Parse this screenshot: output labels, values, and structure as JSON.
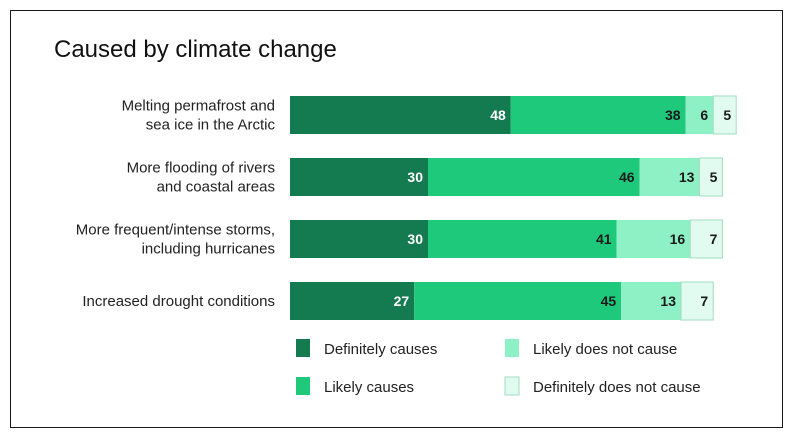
{
  "chart_data": {
    "type": "bar",
    "orientation": "horizontal",
    "stacked": true,
    "title": "Caused by climate change",
    "xlabel": "",
    "ylabel": "",
    "xlim": [
      0,
      100
    ],
    "grid": false,
    "legend_position": "bottom",
    "categories": [
      [
        "Melting permafrost and",
        "sea ice in the Arctic"
      ],
      [
        "More flooding of rivers",
        "and coastal areas"
      ],
      [
        "More frequent/intense storms,",
        "including hurricanes"
      ],
      [
        "Increased drought conditions"
      ]
    ],
    "series": [
      {
        "name": "Definitely causes",
        "color": "#147a4f",
        "label_color": "#ffffff",
        "values": [
          48,
          30,
          30,
          27
        ]
      },
      {
        "name": "Likely causes",
        "color": "#1ec97c",
        "label_color": "#1a1a1a",
        "values": [
          38,
          46,
          41,
          45
        ]
      },
      {
        "name": "Likely does not cause",
        "color": "#8ef0c5",
        "label_color": "#1a1a1a",
        "values": [
          6,
          13,
          16,
          13
        ]
      },
      {
        "name": "Definitely does not cause",
        "color": "#e2fbf0",
        "label_color": "#1a1a1a",
        "values": [
          5,
          5,
          7,
          7
        ]
      }
    ]
  }
}
